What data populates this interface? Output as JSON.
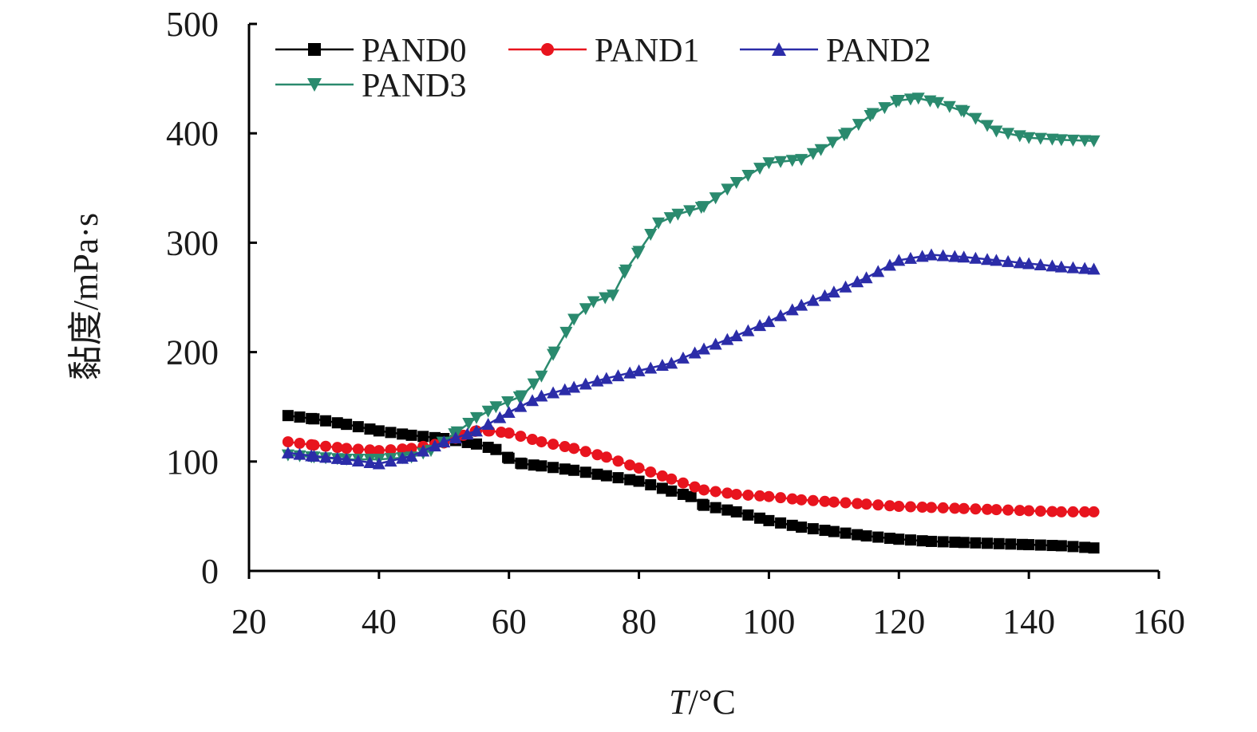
{
  "chart_data": {
    "type": "line",
    "xlabel_italic": "T",
    "xlabel_rest": "/°C",
    "ylabel": "黏度/mPa·s",
    "xlim": [
      20,
      160
    ],
    "ylim": [
      0,
      500
    ],
    "xticks": [
      "20",
      "40",
      "60",
      "80",
      "100",
      "120",
      "140",
      "160"
    ],
    "yticks": [
      "0",
      "100",
      "200",
      "300",
      "400",
      "500"
    ],
    "legend_position": "top-left",
    "series": [
      {
        "name": "PAND0",
        "color": "#000000",
        "marker": "square",
        "points": [
          [
            26,
            142
          ],
          [
            30,
            139
          ],
          [
            35,
            134
          ],
          [
            40,
            128
          ],
          [
            45,
            124
          ],
          [
            50,
            121
          ],
          [
            55,
            116
          ],
          [
            58,
            111
          ],
          [
            60,
            103
          ],
          [
            62,
            98
          ],
          [
            65,
            96
          ],
          [
            70,
            92
          ],
          [
            75,
            87
          ],
          [
            80,
            82
          ],
          [
            85,
            73
          ],
          [
            88,
            68
          ],
          [
            90,
            60
          ],
          [
            95,
            54
          ],
          [
            100,
            46
          ],
          [
            105,
            40
          ],
          [
            110,
            36
          ],
          [
            115,
            32
          ],
          [
            120,
            29
          ],
          [
            125,
            27
          ],
          [
            130,
            26
          ],
          [
            140,
            24
          ],
          [
            145,
            23
          ],
          [
            150,
            21
          ]
        ]
      },
      {
        "name": "PAND1",
        "color": "#e8141e",
        "marker": "circle",
        "points": [
          [
            26,
            118
          ],
          [
            30,
            115
          ],
          [
            35,
            112
          ],
          [
            40,
            110
          ],
          [
            45,
            112
          ],
          [
            50,
            117
          ],
          [
            53,
            124
          ],
          [
            55,
            128
          ],
          [
            57,
            128
          ],
          [
            60,
            126
          ],
          [
            65,
            118
          ],
          [
            70,
            112
          ],
          [
            75,
            104
          ],
          [
            80,
            94
          ],
          [
            85,
            84
          ],
          [
            90,
            74
          ],
          [
            95,
            70
          ],
          [
            100,
            68
          ],
          [
            105,
            65
          ],
          [
            110,
            63
          ],
          [
            115,
            61
          ],
          [
            120,
            59
          ],
          [
            125,
            58
          ],
          [
            130,
            57
          ],
          [
            135,
            56
          ],
          [
            140,
            55
          ],
          [
            145,
            54
          ],
          [
            150,
            54
          ]
        ]
      },
      {
        "name": "PAND2",
        "color": "#2b2ca8",
        "marker": "triangle-up",
        "points": [
          [
            26,
            108
          ],
          [
            30,
            105
          ],
          [
            35,
            102
          ],
          [
            40,
            98
          ],
          [
            45,
            105
          ],
          [
            50,
            118
          ],
          [
            55,
            128
          ],
          [
            60,
            145
          ],
          [
            65,
            160
          ],
          [
            70,
            168
          ],
          [
            75,
            176
          ],
          [
            80,
            183
          ],
          [
            85,
            190
          ],
          [
            90,
            203
          ],
          [
            95,
            215
          ],
          [
            100,
            228
          ],
          [
            105,
            243
          ],
          [
            110,
            255
          ],
          [
            115,
            268
          ],
          [
            120,
            284
          ],
          [
            125,
            289
          ],
          [
            130,
            287
          ],
          [
            135,
            284
          ],
          [
            140,
            281
          ],
          [
            145,
            278
          ],
          [
            150,
            276
          ]
        ]
      },
      {
        "name": "PAND3",
        "color": "#2a8a6e",
        "marker": "triangle-down",
        "points": [
          [
            26,
            106
          ],
          [
            30,
            104
          ],
          [
            35,
            102
          ],
          [
            40,
            102
          ],
          [
            45,
            104
          ],
          [
            48,
            110
          ],
          [
            52,
            127
          ],
          [
            55,
            140
          ],
          [
            58,
            150
          ],
          [
            62,
            160
          ],
          [
            65,
            178
          ],
          [
            67,
            200
          ],
          [
            70,
            230
          ],
          [
            73,
            246
          ],
          [
            76,
            252
          ],
          [
            78,
            275
          ],
          [
            80,
            292
          ],
          [
            83,
            318
          ],
          [
            86,
            326
          ],
          [
            90,
            333
          ],
          [
            95,
            355
          ],
          [
            100,
            373
          ],
          [
            105,
            376
          ],
          [
            108,
            385
          ],
          [
            112,
            400
          ],
          [
            116,
            418
          ],
          [
            120,
            430
          ],
          [
            123,
            432
          ],
          [
            126,
            428
          ],
          [
            130,
            420
          ],
          [
            135,
            402
          ],
          [
            140,
            396
          ],
          [
            145,
            394
          ],
          [
            150,
            393
          ]
        ]
      }
    ]
  }
}
